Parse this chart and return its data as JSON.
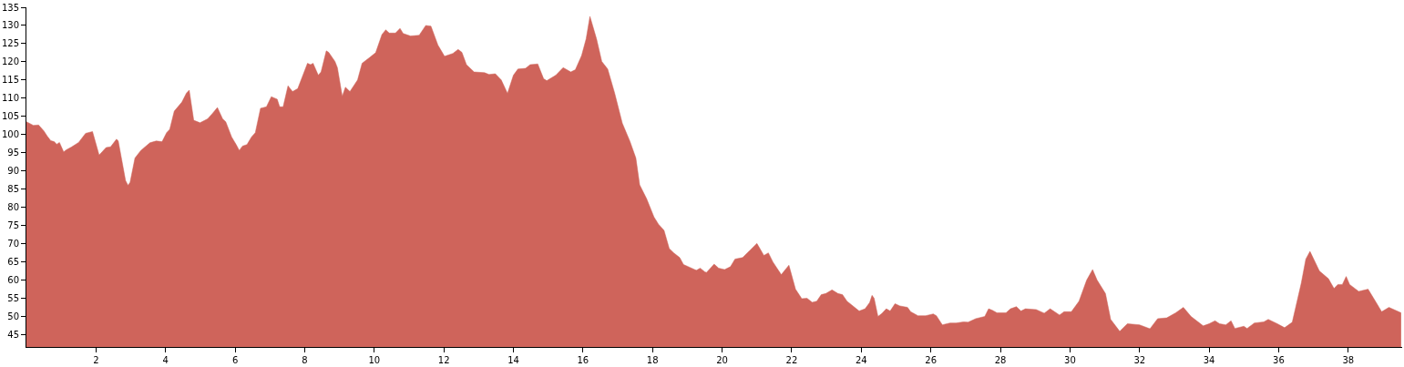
{
  "chart_data": {
    "type": "area",
    "color": "#cf645b",
    "x": [
      0,
      0.2,
      0.35,
      0.5,
      0.6,
      0.7,
      0.8,
      0.87,
      0.95,
      1.07,
      1.15,
      1.29,
      1.5,
      1.7,
      1.9,
      2.09,
      2.29,
      2.42,
      2.59,
      2.64,
      2.85,
      2.92,
      2.98,
      3.12,
      3.29,
      3.55,
      3.73,
      3.9,
      4.03,
      4.12,
      4.25,
      4.47,
      4.6,
      4.68,
      4.81,
      4.99,
      5.21,
      5.34,
      5.49,
      5.64,
      5.73,
      5.9,
      6.03,
      6.12,
      6.21,
      6.34,
      6.47,
      6.58,
      6.73,
      6.9,
      7.04,
      7.21,
      7.28,
      7.38,
      7.52,
      7.65,
      7.8,
      8.08,
      8.17,
      8.24,
      8.39,
      8.47,
      8.62,
      8.69,
      8.87,
      8.94,
      9.08,
      9.17,
      9.3,
      9.52,
      9.65,
      9.87,
      10.04,
      10.22,
      10.33,
      10.43,
      10.61,
      10.74,
      10.83,
      11.04,
      11.29,
      11.48,
      11.63,
      11.83,
      12.02,
      12.26,
      12.41,
      12.52,
      12.65,
      12.87,
      13.17,
      13.3,
      13.48,
      13.65,
      13.83,
      14,
      14.13,
      14.35,
      14.48,
      14.7,
      14.87,
      14.96,
      15.22,
      15.43,
      15.65,
      15.78,
      15.96,
      16.09,
      16.2,
      16.39,
      16.54,
      16.71,
      16.91,
      17.13,
      17.35,
      17.52,
      17.63,
      17.83,
      18.04,
      18.17,
      18.33,
      18.48,
      18.61,
      18.78,
      18.89,
      19.26,
      19.37,
      19.5,
      19.55,
      19.77,
      19.9,
      20.07,
      20.24,
      20.37,
      20.59,
      20.81,
      21,
      21.2,
      21.33,
      21.46,
      21.7,
      21.92,
      22.11,
      22.29,
      22.44,
      22.59,
      22.72,
      22.85,
      22.98,
      23.16,
      23.33,
      23.46,
      23.59,
      23.81,
      23.94,
      24.11,
      24.24,
      24.31,
      24.37,
      24.48,
      24.59,
      24.72,
      24.83,
      24.97,
      25.11,
      25.33,
      25.42,
      25.63,
      25.85,
      26.07,
      26.16,
      26.33,
      26.55,
      26.72,
      26.94,
      27.07,
      27.29,
      27.55,
      27.66,
      27.77,
      27.9,
      28.16,
      28.29,
      28.46,
      28.59,
      28.72,
      29.03,
      29.26,
      29.43,
      29.7,
      29.83,
      30.04,
      30.26,
      30.48,
      30.65,
      30.78,
      31.02,
      31.17,
      31.43,
      31.65,
      32,
      32.3,
      32.52,
      32.78,
      33.04,
      33.26,
      33.48,
      33.83,
      34,
      34.17,
      34.3,
      34.48,
      34.63,
      34.74,
      35,
      35.09,
      35.3,
      35.57,
      35.7,
      35.96,
      36.17,
      36.39,
      36.65,
      36.78,
      36.9,
      37.17,
      37.43,
      37.59,
      37.7,
      37.83,
      37.94,
      38.04,
      38.3,
      38.57,
      38.78,
      38.96,
      39.17,
      39.52
    ],
    "values": [
      103.5,
      102.5,
      102.6,
      101,
      99.5,
      98.3,
      98,
      97.3,
      97.8,
      95.2,
      95.8,
      96.5,
      97.8,
      100.3,
      100.8,
      94.3,
      96.4,
      96.6,
      98.7,
      98.2,
      87.3,
      86,
      86.8,
      93.5,
      95.6,
      97.7,
      98.2,
      98,
      100.5,
      101.4,
      106.4,
      108.9,
      111.4,
      112.2,
      103.9,
      103.2,
      104.3,
      105.7,
      107.4,
      104.3,
      103.5,
      99.3,
      97.2,
      95.6,
      96.8,
      97.2,
      99.3,
      100.5,
      107.2,
      107.6,
      110.4,
      109.7,
      107.6,
      107.6,
      113.4,
      111.8,
      112.6,
      119.6,
      119.2,
      119.6,
      116.3,
      117.2,
      123,
      122.6,
      120.1,
      118.4,
      110.5,
      113,
      111.8,
      115,
      119.6,
      121.2,
      122.5,
      127.5,
      128.8,
      127.9,
      127.9,
      129.2,
      127.8,
      127.1,
      127.3,
      130,
      129.8,
      124.6,
      121.5,
      122.3,
      123.4,
      122.6,
      119.2,
      117.2,
      117,
      116.5,
      116.7,
      115,
      111.3,
      116.3,
      118,
      118.2,
      119.2,
      119.4,
      115.3,
      114.8,
      116.3,
      118.4,
      117.2,
      117.8,
      121.7,
      126.3,
      132.5,
      126.3,
      120.1,
      118,
      111.4,
      103.1,
      98.1,
      93.5,
      86.1,
      82.3,
      77.3,
      75.3,
      73.6,
      68.6,
      67.4,
      66.1,
      64.2,
      62.6,
      63.2,
      62.2,
      62,
      64.3,
      63.2,
      62.8,
      63.6,
      65.7,
      66.1,
      68.2,
      70,
      66.7,
      67.4,
      64.9,
      61.4,
      64,
      57.4,
      54.8,
      54.9,
      53.8,
      54.1,
      55.9,
      56.2,
      57.2,
      56.2,
      55.9,
      54.1,
      52.4,
      51.4,
      52,
      53.7,
      55.7,
      54.9,
      49.9,
      50.7,
      52,
      51.4,
      53.4,
      52.8,
      52.4,
      51.2,
      50.1,
      50.1,
      50.6,
      50.1,
      47.6,
      48.1,
      48.1,
      48.4,
      48.3,
      49.3,
      49.9,
      52,
      51.6,
      50.9,
      50.9,
      52,
      52.6,
      51.4,
      52,
      51.8,
      50.8,
      52,
      50.3,
      51.2,
      51.2,
      54.1,
      59.9,
      62.8,
      59.9,
      56.2,
      49.1,
      45.8,
      47.9,
      47.6,
      46.5,
      49.3,
      49.5,
      50.9,
      52.4,
      49.9,
      47.3,
      47.9,
      48.7,
      47.9,
      47.6,
      48.7,
      46.6,
      47.2,
      46.6,
      48.1,
      48.4,
      49.1,
      47.9,
      46.8,
      48.3,
      59.1,
      65.7,
      67.8,
      62.4,
      60.3,
      57.6,
      58.7,
      58.7,
      60.9,
      58.7,
      56.8,
      57.4,
      54.1,
      51.2,
      52.4,
      50.9
    ],
    "xlim": [
      0,
      39.55
    ],
    "ylim": [
      41.5,
      135
    ],
    "xticks": [
      2,
      4,
      6,
      8,
      10,
      12,
      14,
      16,
      18,
      20,
      22,
      24,
      26,
      28,
      30,
      32,
      34,
      36,
      38
    ],
    "yticks": [
      45,
      50,
      55,
      60,
      65,
      70,
      75,
      80,
      85,
      90,
      95,
      100,
      105,
      110,
      115,
      120,
      125,
      130,
      135
    ]
  }
}
